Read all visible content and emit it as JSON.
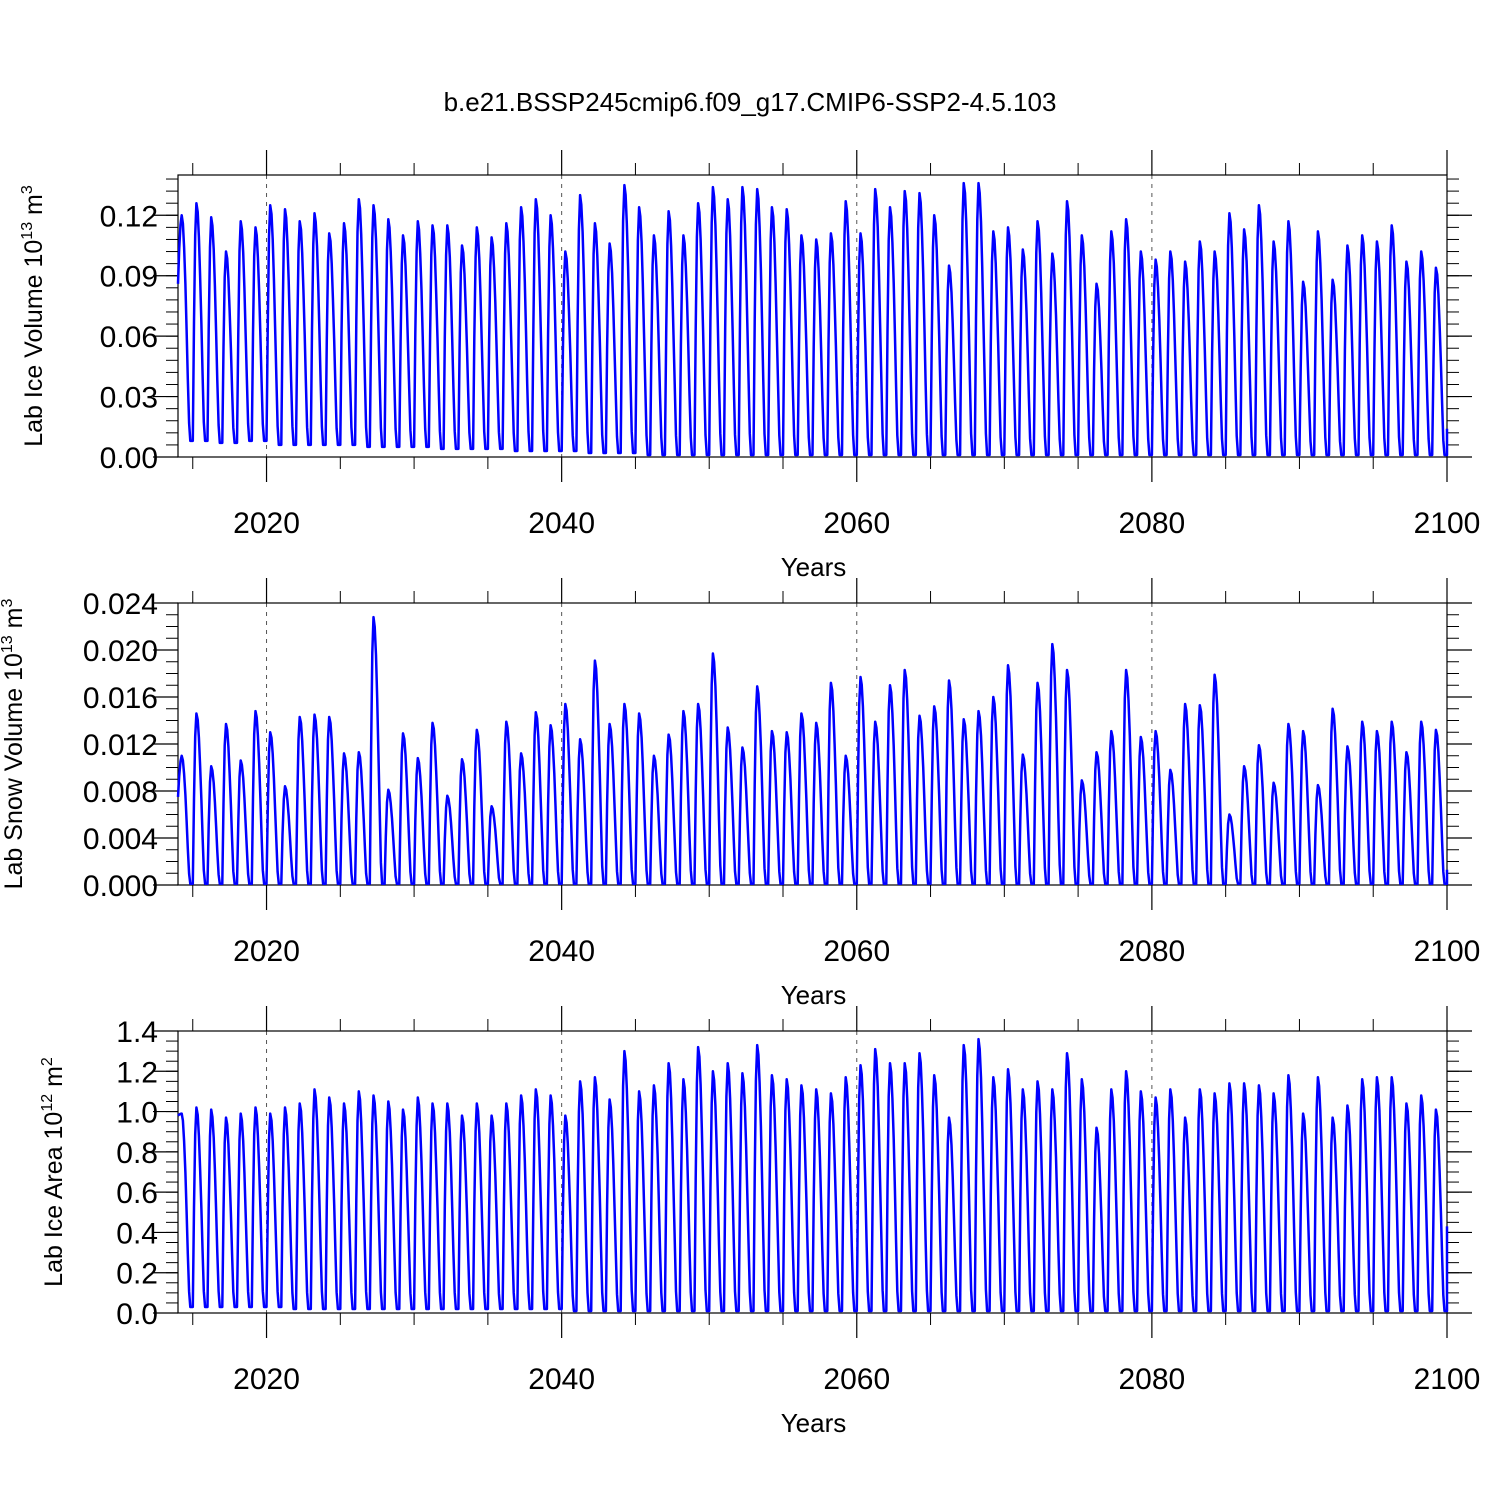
{
  "title": "b.e21.BSSP245cmip6.f09_g17.CMIP6-SSP2-4.5.103",
  "chart_data": [
    {
      "type": "line",
      "name": "ice-volume",
      "ylabel_main": "Lab Ice Volume 10",
      "ylabel_exp": "13",
      "ylabel_unit": " m",
      "ylabel_unit_exp": "3",
      "xlabel": "Years",
      "xlim": [
        2014,
        2100
      ],
      "ylim": [
        0,
        0.14
      ],
      "xticks": [
        2020,
        2040,
        2060,
        2080,
        2100
      ],
      "xtick_labels": [
        "2020",
        "2040",
        "2060",
        "2080",
        "2100"
      ],
      "yticks": [
        0,
        0.03,
        0.06,
        0.09,
        0.12
      ],
      "ytick_labels": [
        "0.00",
        "0.03",
        "0.06",
        "0.09",
        "0.12"
      ],
      "minor_step": 0.006,
      "series_color": "#0000ff",
      "start_value": 0.086,
      "end_value": 0.014,
      "minima": [
        0.008,
        0.008,
        0.007,
        0.007,
        0.008,
        0.008,
        0.006,
        0.006,
        0.006,
        0.006,
        0.006,
        0.006,
        0.005,
        0.005,
        0.005,
        0.005,
        0.005,
        0.004,
        0.004,
        0.004,
        0.004,
        0.004,
        0.003,
        0.003,
        0.003,
        0.003,
        0.003,
        0.002,
        0.002,
        0.002,
        0.002,
        0.001,
        0.001,
        0.001,
        0.001,
        0.001,
        0.001,
        0.001,
        0.001,
        0.001,
        0.001,
        0.001,
        0.001,
        0.001,
        0.001,
        0.001,
        0.001,
        0.001,
        0.001,
        0.001,
        0.001,
        0.001,
        0.001,
        0.001,
        0.001,
        0.001,
        0.001,
        0.001,
        0.001,
        0.001,
        0.001,
        0.001,
        0.001,
        0.001,
        0.001,
        0.001,
        0.001,
        0.001,
        0.001,
        0.001,
        0.001,
        0.001,
        0.001,
        0.001,
        0.001,
        0.001,
        0.001,
        0.001,
        0.001,
        0.001,
        0.001,
        0.001,
        0.001,
        0.001,
        0.001,
        0.001
      ],
      "peaks": [
        0.12,
        0.126,
        0.119,
        0.102,
        0.117,
        0.114,
        0.125,
        0.123,
        0.117,
        0.121,
        0.111,
        0.116,
        0.128,
        0.125,
        0.118,
        0.11,
        0.117,
        0.115,
        0.115,
        0.105,
        0.114,
        0.109,
        0.116,
        0.124,
        0.128,
        0.12,
        0.102,
        0.13,
        0.116,
        0.106,
        0.135,
        0.124,
        0.11,
        0.122,
        0.11,
        0.126,
        0.134,
        0.128,
        0.134,
        0.133,
        0.124,
        0.123,
        0.11,
        0.108,
        0.111,
        0.127,
        0.111,
        0.133,
        0.124,
        0.132,
        0.131,
        0.12,
        0.095,
        0.136,
        0.136,
        0.112,
        0.114,
        0.103,
        0.117,
        0.101,
        0.127,
        0.11,
        0.086,
        0.112,
        0.118,
        0.102,
        0.098,
        0.102,
        0.097,
        0.107,
        0.102,
        0.121,
        0.113,
        0.125,
        0.107,
        0.117,
        0.087,
        0.112,
        0.088,
        0.105,
        0.11,
        0.107,
        0.115,
        0.097,
        0.102,
        0.094
      ]
    },
    {
      "type": "line",
      "name": "snow-volume",
      "ylabel_main": "Lab Snow Volume 10",
      "ylabel_exp": "13",
      "ylabel_unit": " m",
      "ylabel_unit_exp": "3",
      "xlabel": "Years",
      "xlim": [
        2014,
        2100
      ],
      "ylim": [
        0,
        0.024
      ],
      "xticks": [
        2020,
        2040,
        2060,
        2080,
        2100
      ],
      "xtick_labels": [
        "2020",
        "2040",
        "2060",
        "2080",
        "2100"
      ],
      "yticks": [
        0,
        0.004,
        0.008,
        0.012,
        0.016,
        0.02,
        0.024
      ],
      "ytick_labels": [
        "0.000",
        "0.004",
        "0.008",
        "0.012",
        "0.016",
        "0.020",
        "0.024"
      ],
      "minor_step": 0.001,
      "series_color": "#0000ff",
      "start_value": 0.0075,
      "end_value": 0.0013,
      "minima": [
        0.0001
      ],
      "peaks": [
        0.011,
        0.0146,
        0.0101,
        0.0137,
        0.0106,
        0.0148,
        0.013,
        0.0084,
        0.0143,
        0.0145,
        0.0143,
        0.0112,
        0.0113,
        0.0228,
        0.0081,
        0.0129,
        0.0108,
        0.0138,
        0.0076,
        0.0107,
        0.0132,
        0.0067,
        0.0139,
        0.0112,
        0.0147,
        0.0136,
        0.0154,
        0.0124,
        0.0191,
        0.0137,
        0.0154,
        0.0146,
        0.011,
        0.0128,
        0.0148,
        0.0154,
        0.0197,
        0.0134,
        0.0117,
        0.0169,
        0.0131,
        0.013,
        0.0146,
        0.0138,
        0.0172,
        0.011,
        0.0177,
        0.0139,
        0.017,
        0.0183,
        0.0144,
        0.0152,
        0.0174,
        0.0141,
        0.0148,
        0.016,
        0.0187,
        0.0111,
        0.0172,
        0.0205,
        0.0183,
        0.0089,
        0.0113,
        0.0131,
        0.0183,
        0.0126,
        0.0131,
        0.0098,
        0.0154,
        0.0153,
        0.0179,
        0.006,
        0.0101,
        0.0119,
        0.0087,
        0.0137,
        0.0131,
        0.0085,
        0.015,
        0.0118,
        0.0139,
        0.0131,
        0.0139,
        0.0113,
        0.0139,
        0.0132
      ]
    },
    {
      "type": "line",
      "name": "ice-area",
      "ylabel_main": "Lab Ice Area 10",
      "ylabel_exp": "12",
      "ylabel_unit": " m",
      "ylabel_unit_exp": "2",
      "xlabel": "Years",
      "xlim": [
        2014,
        2100
      ],
      "ylim": [
        0,
        1.4
      ],
      "xticks": [
        2020,
        2040,
        2060,
        2080,
        2100
      ],
      "xtick_labels": [
        "2020",
        "2040",
        "2060",
        "2080",
        "2100"
      ],
      "yticks": [
        0,
        0.2,
        0.4,
        0.6,
        0.8,
        1.0,
        1.2,
        1.4
      ],
      "ytick_labels": [
        "0.0",
        "0.2",
        "0.4",
        "0.6",
        "0.8",
        "1.0",
        "1.2",
        "1.4"
      ],
      "minor_step": 0.05,
      "series_color": "#0000ff",
      "start_value": 0.98,
      "end_value": 0.43,
      "minima": [
        0.03,
        0.03,
        0.03,
        0.03,
        0.03,
        0.03,
        0.03,
        0.02,
        0.02,
        0.02,
        0.02,
        0.02,
        0.02,
        0.02,
        0.02,
        0.02,
        0.02,
        0.02,
        0.02,
        0.02,
        0.02,
        0.02,
        0.02,
        0.02,
        0.02,
        0.02,
        0.01,
        0.01,
        0.01,
        0.01,
        0.01,
        0.01,
        0.01,
        0.01,
        0.01,
        0.01,
        0.01,
        0.01,
        0.01,
        0.01,
        0.01,
        0.01,
        0.01,
        0.01,
        0.01,
        0.01,
        0.01,
        0.01,
        0.01,
        0.01,
        0.01,
        0.01,
        0.01,
        0.01,
        0.01,
        0.01,
        0.01,
        0.01,
        0.01,
        0.01,
        0.01,
        0.01,
        0.01,
        0.01,
        0.01,
        0.01,
        0.01,
        0.01,
        0.01,
        0.01,
        0.01,
        0.01,
        0.01,
        0.01,
        0.01,
        0.01,
        0.01,
        0.01,
        0.01,
        0.01,
        0.01,
        0.01,
        0.01,
        0.01,
        0.01,
        0.01
      ],
      "peaks": [
        0.99,
        1.02,
        1.01,
        0.97,
        0.99,
        1.02,
        0.99,
        1.02,
        1.04,
        1.11,
        1.07,
        1.04,
        1.1,
        1.08,
        1.05,
        1.01,
        1.07,
        1.04,
        1.04,
        0.98,
        1.04,
        0.98,
        1.04,
        1.08,
        1.11,
        1.08,
        0.98,
        1.15,
        1.17,
        1.06,
        1.3,
        1.1,
        1.13,
        1.24,
        1.16,
        1.32,
        1.2,
        1.24,
        1.19,
        1.33,
        1.18,
        1.16,
        1.13,
        1.11,
        1.09,
        1.17,
        1.23,
        1.31,
        1.24,
        1.24,
        1.29,
        1.18,
        0.97,
        1.33,
        1.36,
        1.17,
        1.21,
        1.11,
        1.15,
        1.11,
        1.29,
        1.16,
        0.92,
        1.11,
        1.2,
        1.1,
        1.07,
        1.11,
        0.97,
        1.11,
        1.09,
        1.14,
        1.14,
        1.13,
        1.09,
        1.18,
        0.99,
        1.17,
        0.97,
        1.03,
        1.16,
        1.17,
        1.17,
        1.04,
        1.08,
        1.01
      ]
    }
  ]
}
